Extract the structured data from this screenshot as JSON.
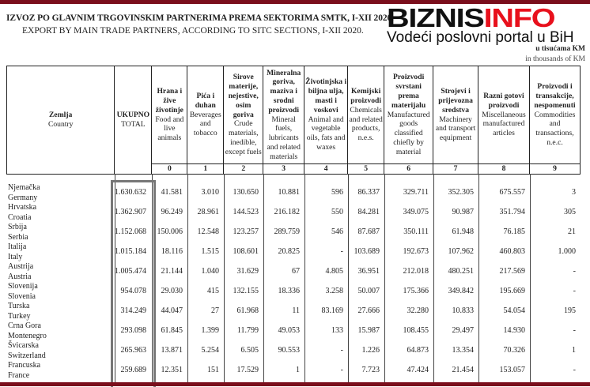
{
  "title_bs": "IZVOZ PO GLAVNIM TRGOVINSKIM PARTNERIMA PREMA SEKTORIMA SMTK, I-XII 2020.",
  "title_en": "EXPORT BY MAIN TRADE PARTNERS, ACCORDING TO SITC SECTIONS, I-XII 2020.",
  "logo": {
    "text_black": "BIZNIS",
    "text_red": "INFO",
    "tagline": "Vodeći poslovni portal u BiH"
  },
  "unit_bs": "u tisućama KM",
  "unit_en": "in thousands of KM",
  "colors": {
    "brand_bar": "#7a0e1c",
    "logo_red": "#e8101c",
    "total_box": "#777777"
  },
  "columns": [
    {
      "bs": "Zemlja",
      "en": "Country",
      "code": ""
    },
    {
      "bs": "UKUPNO",
      "en": "TOTAL",
      "code": ""
    },
    {
      "bs": "Hrana i žive životinje",
      "en": "Food and live animals",
      "code": "0"
    },
    {
      "bs": "Pića i duhan",
      "en": "Beverages and tobacco",
      "code": "1"
    },
    {
      "bs": "Sirove materije, nejestive, osim goriva",
      "en": "Crude materials, inedible, except fuels",
      "code": "2"
    },
    {
      "bs": "Mineralna goriva, maziva i srodni proizvodi",
      "en": "Mineral fuels, lubricants and related materials",
      "code": "3"
    },
    {
      "bs": "Životinjska i biljna ulja, masti i voskovi",
      "en": "Animal and vegetable oils, fats and waxes",
      "code": "4"
    },
    {
      "bs": "Kemijski proizvodi",
      "en": "Chemicals and related products, n.e.s.",
      "code": "5"
    },
    {
      "bs": "Proizvodi svrstani prema materijalu",
      "en": "Manufactured goods classified chiefly by material",
      "code": "6"
    },
    {
      "bs": "Strojevi i prijevozna sredstva",
      "en": "Machinery and transport equipment",
      "code": "7"
    },
    {
      "bs": "Razni gotovi proizvodi",
      "en": "Miscellaneous manufactured articles",
      "code": "8"
    },
    {
      "bs": "Proizvodi i transakcije, nespomenuti",
      "en": "Commodities and transactions, n.e.c.",
      "code": "9"
    }
  ],
  "rows": [
    {
      "bs": "Njemačka",
      "en": "Germany",
      "values": [
        "1.630.632",
        "41.581",
        "3.010",
        "130.650",
        "10.881",
        "596",
        "86.337",
        "329.711",
        "352.305",
        "675.557",
        "3"
      ]
    },
    {
      "bs": "Hrvatska",
      "en": "Croatia",
      "values": [
        "1.362.907",
        "96.249",
        "28.961",
        "144.523",
        "216.182",
        "550",
        "84.281",
        "349.075",
        "90.987",
        "351.794",
        "305"
      ]
    },
    {
      "bs": "Srbija",
      "en": "Serbia",
      "values": [
        "1.152.068",
        "150.006",
        "12.548",
        "123.257",
        "289.759",
        "546",
        "87.687",
        "350.111",
        "61.948",
        "76.185",
        "21"
      ]
    },
    {
      "bs": "Italija",
      "en": "Italy",
      "values": [
        "1.015.184",
        "18.116",
        "1.515",
        "108.601",
        "20.825",
        "-",
        "103.689",
        "192.673",
        "107.962",
        "460.803",
        "1.000"
      ]
    },
    {
      "bs": "Austrija",
      "en": "Austria",
      "values": [
        "1.005.474",
        "21.144",
        "1.040",
        "31.629",
        "67",
        "4.805",
        "36.951",
        "212.018",
        "480.251",
        "217.569",
        "-"
      ]
    },
    {
      "bs": "Slovenija",
      "en": "Slovenia",
      "values": [
        "954.078",
        "29.030",
        "415",
        "132.155",
        "18.336",
        "3.258",
        "50.007",
        "175.366",
        "349.842",
        "195.669",
        "-"
      ]
    },
    {
      "bs": "Turska",
      "en": "Turkey",
      "values": [
        "314.249",
        "44.047",
        "27",
        "61.968",
        "11",
        "83.169",
        "27.666",
        "32.280",
        "10.833",
        "54.054",
        "195"
      ]
    },
    {
      "bs": "Crna Gora",
      "en": "Montenegro",
      "values": [
        "293.098",
        "61.845",
        "1.399",
        "11.799",
        "49.053",
        "133",
        "15.987",
        "108.455",
        "29.497",
        "14.930",
        "-"
      ]
    },
    {
      "bs": "Švicarska",
      "en": "Switzerland",
      "values": [
        "265.963",
        "13.871",
        "5.254",
        "6.505",
        "90.553",
        "-",
        "1.226",
        "64.873",
        "13.354",
        "70.326",
        "1"
      ]
    },
    {
      "bs": "Francuska",
      "en": "France",
      "values": [
        "259.689",
        "12.351",
        "151",
        "17.529",
        "1",
        "-",
        "7.723",
        "47.424",
        "21.454",
        "153.057",
        "-"
      ]
    }
  ]
}
